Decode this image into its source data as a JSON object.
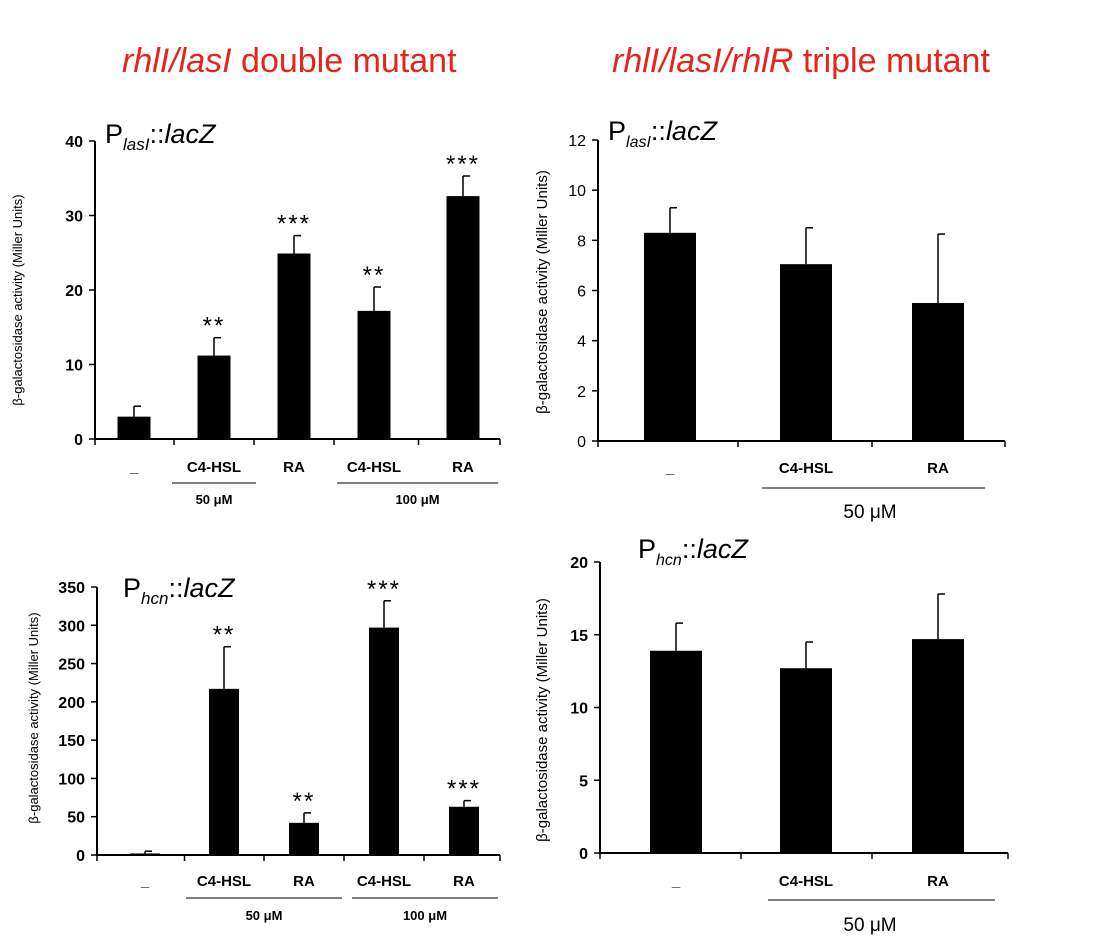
{
  "headers": {
    "left_italic": "rhlI/lasI",
    "left_rest": " double mutant",
    "right_italic": "rhlI/lasI/rhlR",
    "right_rest": " triple mutant"
  },
  "colors": {
    "header": "#e8231a",
    "bar": "#000000"
  },
  "chart_data": [
    {
      "id": "p1",
      "type": "bar",
      "title_parts": [
        "P",
        "lasI",
        "::",
        "lacZ"
      ],
      "ylabel": "β-galactosidase activity  (Miller Units)",
      "ylim": [
        0,
        40
      ],
      "yticks": [
        0,
        10,
        20,
        30,
        40
      ],
      "categories": [
        "_",
        "C4-HSL",
        "RA",
        "C4-HSL",
        "RA"
      ],
      "values": [
        3,
        11.2,
        24.9,
        17.2,
        32.6
      ],
      "errors": [
        1.4,
        2.4,
        2.4,
        3.2,
        2.7
      ],
      "significance": [
        "",
        "**",
        "***",
        "**",
        "***"
      ],
      "groups": [
        {
          "label": "50 μM",
          "categories": [
            1,
            2
          ]
        },
        {
          "label": "100 μM",
          "categories": [
            3,
            4
          ]
        }
      ]
    },
    {
      "id": "p2",
      "type": "bar",
      "title_parts": [
        "P",
        "lasI",
        "::",
        "lacZ"
      ],
      "ylabel": "β-galactosidase activity  (Miller Units)",
      "ylim": [
        0,
        12
      ],
      "yticks": [
        0,
        2,
        4,
        6,
        8,
        10,
        12
      ],
      "categories": [
        "_",
        "C4-HSL",
        "RA"
      ],
      "values": [
        8.3,
        7.05,
        5.5
      ],
      "errors": [
        1.0,
        1.45,
        2.75
      ],
      "significance": [
        "",
        "",
        ""
      ],
      "groups": [
        {
          "label": "50 μM",
          "categories": [
            1,
            2
          ]
        }
      ]
    },
    {
      "id": "p3",
      "type": "bar",
      "title_parts": [
        "P",
        "hcn",
        "::",
        "lacZ"
      ],
      "ylabel": "β-galactosidase activity  (Miller Units)",
      "ylim": [
        0,
        350
      ],
      "yticks": [
        0,
        50,
        100,
        150,
        200,
        250,
        300,
        350
      ],
      "categories": [
        "_",
        "C4-HSL",
        "RA",
        "C4-HSL",
        "RA"
      ],
      "values": [
        2,
        217,
        42,
        297,
        63
      ],
      "errors": [
        3,
        55,
        13,
        35,
        8
      ],
      "significance": [
        "",
        "**",
        "**",
        "***",
        "***"
      ],
      "groups": [
        {
          "label": "50 μM",
          "categories": [
            1,
            2
          ]
        },
        {
          "label": "100 μM",
          "categories": [
            3,
            4
          ]
        }
      ]
    },
    {
      "id": "p4",
      "type": "bar",
      "title_parts": [
        "P",
        "hcn",
        "::",
        "lacZ"
      ],
      "ylabel": "β-galactosidase activity  (Miller Units)",
      "ylim": [
        0,
        20
      ],
      "yticks": [
        0,
        5,
        10,
        15,
        20
      ],
      "categories": [
        "_",
        "C4-HSL",
        "RA"
      ],
      "values": [
        13.9,
        12.7,
        14.7
      ],
      "errors": [
        1.9,
        1.8,
        3.1
      ],
      "significance": [
        "",
        "",
        ""
      ],
      "groups": [
        {
          "label": "50 μM",
          "categories": [
            1,
            2
          ]
        }
      ]
    }
  ]
}
